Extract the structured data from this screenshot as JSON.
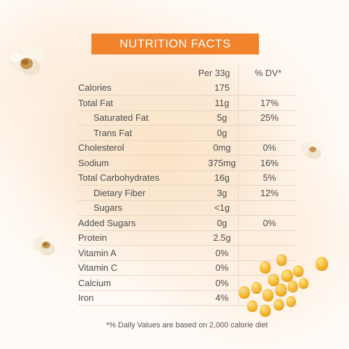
{
  "title": "NUTRITION FACTS",
  "headers": {
    "per": "Per 33g",
    "dv": "% DV*"
  },
  "rows": [
    {
      "label": "Calories",
      "per": "175",
      "dv": "",
      "indent": false
    },
    {
      "label": "Total Fat",
      "per": "11g",
      "dv": "17%",
      "indent": false
    },
    {
      "label": "Saturated Fat",
      "per": "5g",
      "dv": "25%",
      "indent": true
    },
    {
      "label": "Trans Fat",
      "per": "0g",
      "dv": "",
      "indent": true
    },
    {
      "label": "Cholesterol",
      "per": "0mg",
      "dv": "0%",
      "indent": false
    },
    {
      "label": "Sodium",
      "per": "375mg",
      "dv": "16%",
      "indent": false
    },
    {
      "label": "Total Carbohydrates",
      "per": "16g",
      "dv": "5%",
      "indent": false
    },
    {
      "label": "Dietary Fiber",
      "per": "3g",
      "dv": "12%",
      "indent": true
    },
    {
      "label": "Sugars",
      "per": "<1g",
      "dv": "",
      "indent": true
    },
    {
      "label": "Added Sugars",
      "per": "0g",
      "dv": "0%",
      "indent": false
    },
    {
      "label": "Protein",
      "per": "2.5g",
      "dv": "",
      "indent": false
    },
    {
      "label": "Vitamin A",
      "per": "0%",
      "dv": "",
      "indent": false
    },
    {
      "label": "Vitamin C",
      "per": "0%",
      "dv": "",
      "indent": false
    },
    {
      "label": "Calcium",
      "per": "0%",
      "dv": "",
      "indent": false
    },
    {
      "label": "Iron",
      "per": "4%",
      "dv": "",
      "indent": false
    }
  ],
  "footnote": "*% Daily Values are based on 2,000 calorie diet",
  "colors": {
    "accent": "#f0832b",
    "kernel": "#f4b52c"
  },
  "decorations": [
    "popcorn-icon",
    "corn-kernel-icon"
  ]
}
